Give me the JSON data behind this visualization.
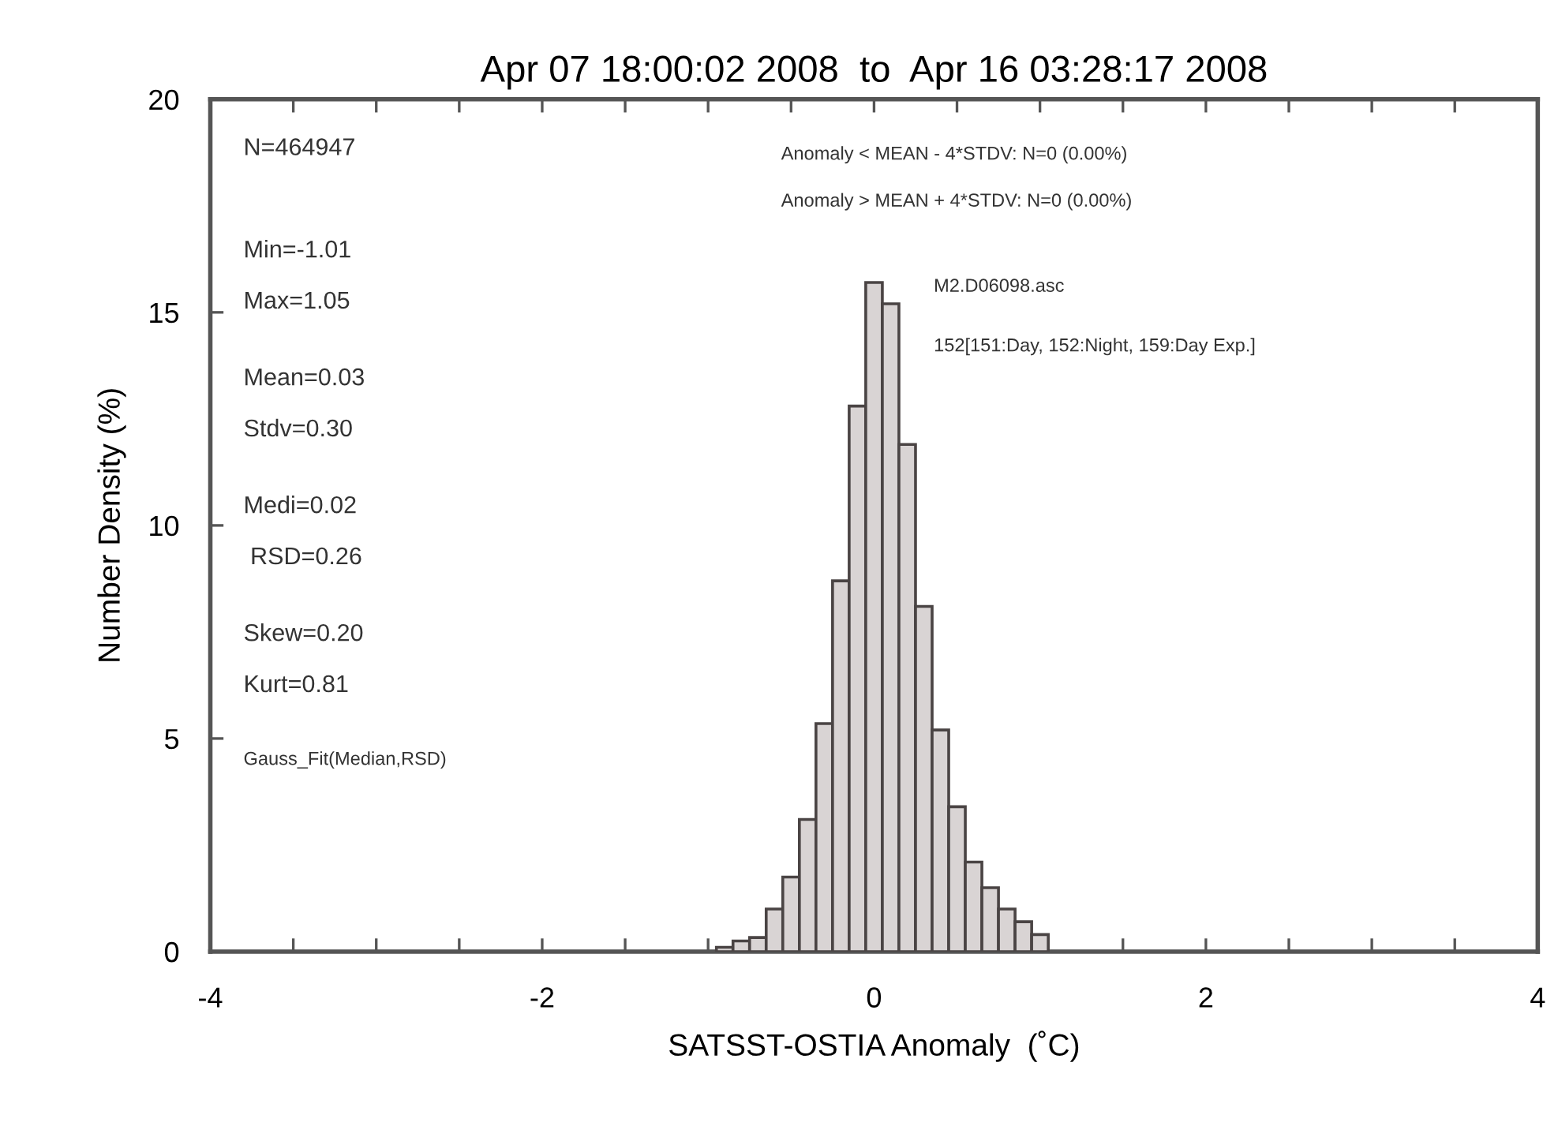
{
  "chart_data": {
    "type": "histogram",
    "title": "Apr 07 18:00:02 2008  to  Apr 16 03:28:17 2008",
    "xlabel": "SATSST-OSTIA Anomaly  (˚C)",
    "ylabel": "Number Density (%)",
    "bins": [
      -0.95,
      -0.85,
      -0.75,
      -0.65,
      -0.55,
      -0.45,
      -0.35,
      -0.25,
      -0.15,
      -0.05,
      0.05,
      0.15,
      0.25,
      0.35,
      0.45,
      0.55,
      0.65,
      0.75,
      0.85,
      0.95,
      1.05
    ],
    "values": [
      0.1,
      0.25,
      0.33,
      1.0,
      1.75,
      3.1,
      5.35,
      8.7,
      12.8,
      15.7,
      15.2,
      11.9,
      8.1,
      5.2,
      3.4,
      2.1,
      1.5,
      1.0,
      0.7,
      0.4
    ],
    "color": "#d9d4d4",
    "xlim": [
      -4,
      4
    ],
    "xticks": [
      -4,
      {
        "value": -3.5,
        "label": null
      },
      {
        "value": -3,
        "label": null
      },
      {
        "value": -2.5,
        "label": null
      },
      -2,
      {
        "value": -1.5,
        "label": null
      },
      {
        "value": -1,
        "label": null
      },
      {
        "value": -0.5,
        "label": null
      },
      0,
      {
        "value": 0.5,
        "label": null
      },
      {
        "value": 1,
        "label": null
      },
      {
        "value": 1.5,
        "label": null
      },
      2,
      {
        "value": 2.5,
        "label": null
      },
      {
        "value": 3,
        "label": null
      },
      {
        "value": 3.5,
        "label": null
      },
      4
    ],
    "ylim": [
      0,
      20
    ],
    "yticks": [
      0,
      5,
      10,
      15,
      20
    ],
    "grid": false,
    "annotations": [
      "N=464947",
      "Min=-1.01",
      "Max=1.05",
      "Mean=0.03",
      "Stdv=0.30",
      "Medi=0.02",
      " RSD=0.26",
      "Skew=0.20",
      "Kurt=0.81",
      "Gauss_Fit(Median,RSD)",
      "Anomaly < MEAN - 4*STDV: N=0 (0.00%)",
      "Anomaly > MEAN + 4*STDV: N=0 (0.00%)",
      "M2.D06098.asc",
      "152[151:Day, 152:Night, 159:Day Exp.]"
    ]
  }
}
